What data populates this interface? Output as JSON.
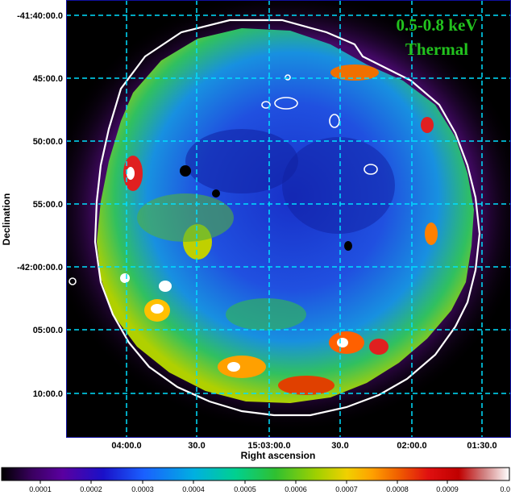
{
  "annotation": {
    "energy_band": "0.5-0.8 keV",
    "component": "Thermal"
  },
  "axes": {
    "x_title": "Right ascension",
    "y_title": "Declination",
    "x_ticks": [
      "04:00.0",
      "30.0",
      "15:03:00.0",
      "30.0",
      "02:00.0",
      "01:30.0"
    ],
    "y_ticks": [
      "-41:40:00.0",
      "45:00.0",
      "50:00.0",
      "55:00.0",
      "-42:00:00.0",
      "05:00.0",
      "10:00.0"
    ]
  },
  "colorbar": {
    "ticks": [
      "0.0001",
      "0.0002",
      "0.0003",
      "0.0004",
      "0.0005",
      "0.0006",
      "0.0007",
      "0.0008",
      "0.0009",
      "0.0"
    ],
    "stops": [
      "#000000",
      "#3a0060",
      "#5a00a0",
      "#1a10c8",
      "#1a60ff",
      "#00b0e0",
      "#00d090",
      "#30c030",
      "#a0d000",
      "#f0d000",
      "#ffa000",
      "#f06000",
      "#e01010",
      "#c00000",
      "#d08080",
      "#ffffff"
    ]
  },
  "colors": {
    "grid": "#00e0ff",
    "contour": "#ffffff",
    "annotation": "#22c21e",
    "frame": "#1010a0"
  }
}
